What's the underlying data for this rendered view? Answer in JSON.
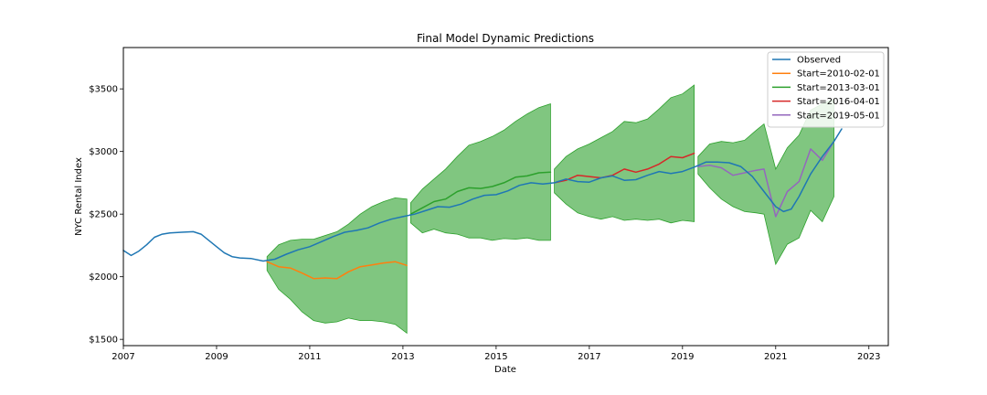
{
  "chart_data": {
    "type": "line",
    "title": "Final Model Dynamic Predictions",
    "xlabel": "Date",
    "ylabel": "NYC Rental Index",
    "xlim": [
      "2007-01-01",
      "2023-06-01"
    ],
    "ylim": [
      1450,
      3830
    ],
    "x_ticks": [
      {
        "value": "2007-01-01",
        "label": "2007"
      },
      {
        "value": "2009-01-01",
        "label": "2009"
      },
      {
        "value": "2011-01-01",
        "label": "2011"
      },
      {
        "value": "2013-01-01",
        "label": "2013"
      },
      {
        "value": "2015-01-01",
        "label": "2015"
      },
      {
        "value": "2017-01-01",
        "label": "2017"
      },
      {
        "value": "2019-01-01",
        "label": "2019"
      },
      {
        "value": "2021-01-01",
        "label": "2021"
      },
      {
        "value": "2023-01-01",
        "label": "2023"
      }
    ],
    "y_ticks": [
      {
        "value": 1500,
        "label": "$1500"
      },
      {
        "value": 2000,
        "label": "$2000"
      },
      {
        "value": 2500,
        "label": "$2500"
      },
      {
        "value": 3000,
        "label": "$3000"
      },
      {
        "value": 3500,
        "label": "$3500"
      }
    ],
    "grid": false,
    "legend_position": "top-right",
    "series": [
      {
        "name": "Observed",
        "color": "#1f77b4",
        "x": [
          "2007-01-01",
          "2007-03-01",
          "2007-05-01",
          "2007-07-01",
          "2007-09-01",
          "2007-11-01",
          "2008-01-01",
          "2008-04-01",
          "2008-07-01",
          "2008-09-01",
          "2008-11-01",
          "2009-01-01",
          "2009-03-01",
          "2009-05-01",
          "2009-07-01",
          "2009-10-01",
          "2010-01-01",
          "2010-04-01",
          "2010-07-01",
          "2010-10-01",
          "2011-01-01",
          "2011-04-01",
          "2011-07-01",
          "2011-10-01",
          "2012-01-01",
          "2012-04-01",
          "2012-07-01",
          "2012-10-01",
          "2013-01-01",
          "2013-04-01",
          "2013-07-01",
          "2013-10-01",
          "2014-01-01",
          "2014-04-01",
          "2014-07-01",
          "2014-10-01",
          "2015-01-01",
          "2015-04-01",
          "2015-07-01",
          "2015-10-01",
          "2016-01-01",
          "2016-04-01",
          "2016-07-01",
          "2016-10-01",
          "2017-01-01",
          "2017-04-01",
          "2017-07-01",
          "2017-10-01",
          "2018-01-01",
          "2018-04-01",
          "2018-07-01",
          "2018-10-01",
          "2019-01-01",
          "2019-04-01",
          "2019-07-01",
          "2019-10-01",
          "2020-01-01",
          "2020-04-01",
          "2020-07-01",
          "2020-10-01",
          "2021-01-01",
          "2021-03-01",
          "2021-05-01",
          "2021-07-01",
          "2021-10-01",
          "2022-01-01",
          "2022-04-01",
          "2022-06-01"
        ],
        "values": [
          2210,
          2170,
          2205,
          2255,
          2315,
          2340,
          2350,
          2355,
          2360,
          2340,
          2290,
          2240,
          2190,
          2160,
          2150,
          2145,
          2125,
          2140,
          2180,
          2215,
          2240,
          2280,
          2320,
          2355,
          2370,
          2390,
          2430,
          2460,
          2480,
          2500,
          2530,
          2560,
          2555,
          2580,
          2620,
          2650,
          2655,
          2685,
          2730,
          2750,
          2740,
          2750,
          2780,
          2760,
          2755,
          2790,
          2805,
          2770,
          2775,
          2810,
          2840,
          2825,
          2840,
          2875,
          2915,
          2915,
          2910,
          2880,
          2800,
          2680,
          2560,
          2520,
          2540,
          2640,
          2820,
          2960,
          3080,
          3180
        ]
      },
      {
        "name": "Start=2010-02-01",
        "color": "#ff7f0e",
        "x": [
          "2010-02-01",
          "2010-05-01",
          "2010-08-01",
          "2010-11-01",
          "2011-02-01",
          "2011-05-01",
          "2011-08-01",
          "2011-11-01",
          "2012-02-01",
          "2012-05-01",
          "2012-08-01",
          "2012-11-01",
          "2013-02-01"
        ],
        "values": [
          2120,
          2080,
          2070,
          2030,
          1985,
          1990,
          1985,
          2040,
          2080,
          2095,
          2110,
          2120,
          2090
        ]
      },
      {
        "name": "Start=2013-03-01",
        "color": "#2ca02c",
        "x": [
          "2013-03-01",
          "2013-06-01",
          "2013-09-01",
          "2013-12-01",
          "2014-03-01",
          "2014-06-01",
          "2014-09-01",
          "2014-12-01",
          "2015-03-01",
          "2015-06-01",
          "2015-09-01",
          "2015-12-01",
          "2016-03-01"
        ],
        "values": [
          2500,
          2550,
          2600,
          2620,
          2680,
          2710,
          2705,
          2720,
          2750,
          2795,
          2805,
          2830,
          2835
        ]
      },
      {
        "name": "Start=2016-04-01",
        "color": "#d62728",
        "x": [
          "2016-04-01",
          "2016-07-01",
          "2016-10-01",
          "2017-01-01",
          "2017-04-01",
          "2017-07-01",
          "2017-10-01",
          "2018-01-01",
          "2018-04-01",
          "2018-07-01",
          "2018-10-01",
          "2019-01-01",
          "2019-04-01"
        ],
        "values": [
          2750,
          2770,
          2810,
          2800,
          2790,
          2810,
          2860,
          2835,
          2860,
          2900,
          2960,
          2950,
          2985
        ]
      },
      {
        "name": "Start=2019-05-01",
        "color": "#9467bd",
        "x": [
          "2019-05-01",
          "2019-08-01",
          "2019-11-01",
          "2020-02-01",
          "2020-05-01",
          "2020-08-01",
          "2020-10-01",
          "2021-01-01",
          "2021-04-01",
          "2021-07-01",
          "2021-10-01",
          "2022-01-01",
          "2022-04-01"
        ],
        "values": [
          2880,
          2890,
          2870,
          2810,
          2830,
          2850,
          2860,
          2480,
          2680,
          2760,
          3020,
          2930,
          3080
        ]
      }
    ],
    "confidence_bands": [
      {
        "color": "#2ca02c",
        "opacity": 0.6,
        "x": [
          "2010-02-01",
          "2010-05-01",
          "2010-08-01",
          "2010-11-01",
          "2011-02-01",
          "2011-05-01",
          "2011-08-01",
          "2011-11-01",
          "2012-02-01",
          "2012-05-01",
          "2012-08-01",
          "2012-11-01",
          "2013-02-01"
        ],
        "upper": [
          2160,
          2255,
          2290,
          2300,
          2300,
          2330,
          2360,
          2420,
          2500,
          2560,
          2600,
          2630,
          2620
        ],
        "lower": [
          2050,
          1900,
          1820,
          1720,
          1650,
          1630,
          1640,
          1670,
          1650,
          1650,
          1640,
          1620,
          1550
        ]
      },
      {
        "color": "#2ca02c",
        "opacity": 0.6,
        "x": [
          "2013-03-01",
          "2013-06-01",
          "2013-09-01",
          "2013-12-01",
          "2014-03-01",
          "2014-06-01",
          "2014-09-01",
          "2014-12-01",
          "2015-03-01",
          "2015-06-01",
          "2015-09-01",
          "2015-12-01",
          "2016-03-01"
        ],
        "upper": [
          2590,
          2700,
          2780,
          2860,
          2960,
          3050,
          3080,
          3120,
          3170,
          3240,
          3300,
          3350,
          3380
        ],
        "lower": [
          2430,
          2350,
          2380,
          2350,
          2340,
          2310,
          2310,
          2290,
          2305,
          2300,
          2310,
          2290,
          2290
        ]
      },
      {
        "color": "#2ca02c",
        "opacity": 0.6,
        "x": [
          "2016-04-01",
          "2016-07-01",
          "2016-10-01",
          "2017-01-01",
          "2017-04-01",
          "2017-07-01",
          "2017-10-01",
          "2018-01-01",
          "2018-04-01",
          "2018-07-01",
          "2018-10-01",
          "2019-01-01",
          "2019-04-01"
        ],
        "upper": [
          2860,
          2960,
          3020,
          3060,
          3110,
          3160,
          3240,
          3230,
          3260,
          3340,
          3430,
          3460,
          3530
        ],
        "lower": [
          2670,
          2580,
          2510,
          2480,
          2460,
          2480,
          2450,
          2460,
          2450,
          2460,
          2430,
          2450,
          2440
        ]
      },
      {
        "color": "#2ca02c",
        "opacity": 0.6,
        "x": [
          "2019-05-01",
          "2019-08-01",
          "2019-11-01",
          "2020-02-01",
          "2020-05-01",
          "2020-08-01",
          "2020-10-01",
          "2021-01-01",
          "2021-04-01",
          "2021-07-01",
          "2021-10-01",
          "2022-01-01",
          "2022-04-01"
        ],
        "upper": [
          2960,
          3060,
          3080,
          3070,
          3090,
          3170,
          3220,
          2860,
          3030,
          3130,
          3330,
          3380,
          3420
        ],
        "lower": [
          2820,
          2710,
          2620,
          2560,
          2520,
          2510,
          2500,
          2100,
          2260,
          2310,
          2530,
          2440,
          2640
        ]
      }
    ]
  }
}
